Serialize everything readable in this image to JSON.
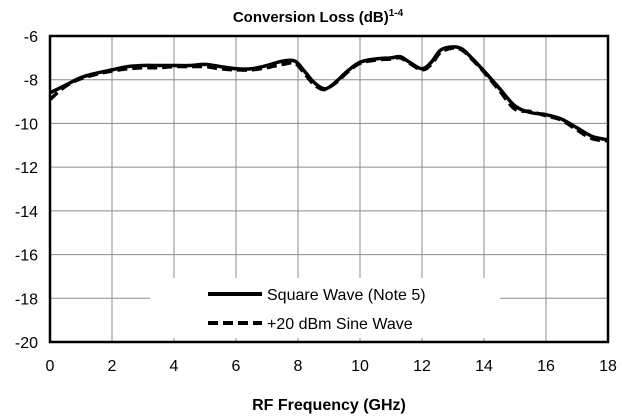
{
  "chart_data": {
    "type": "line",
    "title": "Conversion Loss (dB)",
    "title_superscript": "1-4",
    "xlabel": "RF Frequency (GHz)",
    "ylabel": "",
    "xlim": [
      0,
      18
    ],
    "ylim": [
      -20,
      -6
    ],
    "x_ticks": [
      "0",
      "2",
      "4",
      "6",
      "8",
      "10",
      "12",
      "14",
      "16",
      "18"
    ],
    "y_ticks": [
      "-6",
      "-8",
      "-10",
      "-12",
      "-14",
      "-16",
      "-18",
      "-20"
    ],
    "grid": true,
    "legend_position": "bottom-center",
    "series": [
      {
        "name": "Square Wave (Note 5)",
        "style": "solid",
        "color": "#000000",
        "x": [
          0,
          0.5,
          1,
          1.5,
          2,
          2.5,
          3,
          3.5,
          4,
          4.5,
          5,
          5.5,
          6,
          6.5,
          7,
          7.5,
          7.9,
          8.2,
          8.5,
          8.8,
          9,
          9.3,
          9.6,
          10,
          10.5,
          11,
          11.3,
          11.6,
          12,
          12.3,
          12.6,
          13,
          13.3,
          13.6,
          14,
          14.5,
          15,
          15.5,
          16,
          16.5,
          17,
          17.5,
          18
        ],
        "y": [
          -8.6,
          -8.25,
          -7.9,
          -7.7,
          -7.55,
          -7.4,
          -7.35,
          -7.35,
          -7.35,
          -7.35,
          -7.3,
          -7.4,
          -7.5,
          -7.5,
          -7.35,
          -7.15,
          -7.15,
          -7.6,
          -8.1,
          -8.4,
          -8.35,
          -8.0,
          -7.6,
          -7.2,
          -7.05,
          -7.0,
          -6.95,
          -7.2,
          -7.5,
          -7.2,
          -6.65,
          -6.5,
          -6.6,
          -7.0,
          -7.6,
          -8.4,
          -9.2,
          -9.5,
          -9.6,
          -9.8,
          -10.2,
          -10.6,
          -10.75
        ]
      },
      {
        "name": "+20 dBm Sine Wave",
        "style": "dashed",
        "color": "#000000",
        "x": [
          0,
          0.5,
          1,
          1.5,
          2,
          2.5,
          3,
          3.5,
          4,
          4.5,
          5,
          5.5,
          6,
          6.5,
          7,
          7.5,
          7.9,
          8.2,
          8.5,
          8.8,
          9,
          9.3,
          9.6,
          10,
          10.5,
          11,
          11.3,
          11.6,
          12,
          12.3,
          12.6,
          13,
          13.3,
          13.6,
          14,
          14.5,
          15,
          15.5,
          16,
          16.5,
          17,
          17.5,
          18
        ],
        "y": [
          -8.9,
          -8.3,
          -7.95,
          -7.75,
          -7.6,
          -7.5,
          -7.45,
          -7.45,
          -7.4,
          -7.4,
          -7.4,
          -7.5,
          -7.55,
          -7.55,
          -7.45,
          -7.3,
          -7.25,
          -7.7,
          -8.2,
          -8.45,
          -8.35,
          -8.05,
          -7.65,
          -7.25,
          -7.1,
          -7.05,
          -7.0,
          -7.25,
          -7.55,
          -7.3,
          -6.75,
          -6.55,
          -6.65,
          -7.05,
          -7.65,
          -8.5,
          -9.35,
          -9.45,
          -9.65,
          -9.85,
          -10.3,
          -10.7,
          -10.8
        ]
      }
    ]
  }
}
